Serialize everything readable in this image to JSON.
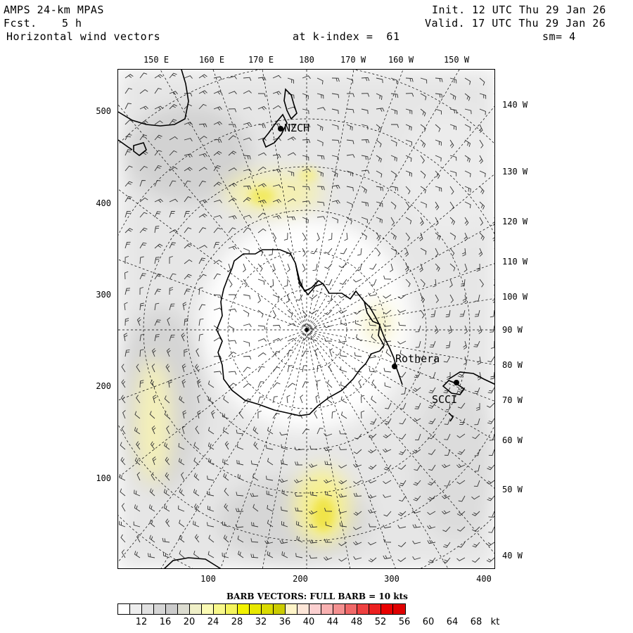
{
  "header": {
    "model": "AMPS 24-km MPAS",
    "fcst_label": "Fcst.",
    "fcst_value": "5 h",
    "field": "Horizontal wind vectors",
    "level": "at k-index =  61",
    "init": "Init. 12 UTC Thu 29 Jan 26",
    "valid": "Valid. 17 UTC Thu 29 Jan 26",
    "smooth": "sm= 4"
  },
  "lon_labels_top": [
    "150 E",
    "160 E",
    "170 E",
    "180",
    "170 W",
    "160 W",
    "150 W"
  ],
  "lon_labels_right": [
    "140 W",
    "130 W",
    "120 W",
    "110 W",
    "100 W",
    "90 W",
    "80 W",
    "70 W",
    "60 W",
    "50 W",
    "40 W"
  ],
  "y_ticks": [
    "500",
    "400",
    "300",
    "200",
    "100"
  ],
  "x_ticks": [
    "100",
    "200",
    "300",
    "400"
  ],
  "stations": [
    {
      "name": "NZCH"
    },
    {
      "name": "Rothera"
    },
    {
      "name": "SCCI"
    }
  ],
  "legend": {
    "title": "BARB VECTORS:  FULL BARB = 10 kts",
    "unit": "kt",
    "labels": [
      "12",
      "16",
      "20",
      "24",
      "28",
      "32",
      "36",
      "40",
      "44",
      "48",
      "52",
      "56",
      "60",
      "64",
      "68"
    ],
    "colors": [
      "#ffffff",
      "#eeeeee",
      "#e2e2e2",
      "#d6d6d6",
      "#cbcbcb",
      "#dcdcd0",
      "#f0f0c8",
      "#fbfbb4",
      "#f8f88a",
      "#f4f45c",
      "#f2f200",
      "#e8e800",
      "#dada00",
      "#cccc00",
      "#fff4c8",
      "#fde6d8",
      "#fcd0d0",
      "#f8b0b0",
      "#f49090",
      "#f06868",
      "#ee4040",
      "#ec2020",
      "#ea0000",
      "#e00000"
    ]
  },
  "colors": {
    "land_outline": "#000000",
    "grid": "#000000",
    "shade_light": "#e4e4e4",
    "shade_mid": "#cdcdcd",
    "highlight": "#f8f6b0",
    "highlight_strong": "#f0e86a"
  }
}
